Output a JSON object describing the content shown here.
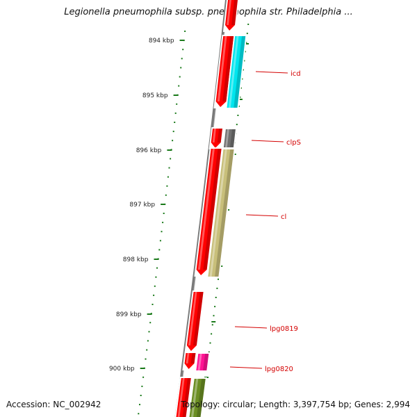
{
  "title": "Legionella pneumophila subsp. pneumophila str. Philadelphia ...",
  "footer": {
    "accession": "Accession: NC_002942",
    "summary": "Topology: circular; Length: 3,397,754 bp; Genes: 2,994"
  },
  "colors": {
    "backbone": "#7a7a7a",
    "tick": "#1a7a1a",
    "label_line": "#d40000",
    "label_text": "#d40000",
    "cds_strand": "#ff0000",
    "icd": "#00e5ee",
    "clpS": "#707070",
    "cl": "#c8bf7a",
    "lpg0820": "#ff1493",
    "next_gene": "#6b8e23"
  },
  "scale": {
    "labels": [
      "894 kbp",
      "895 kbp",
      "896 kbp",
      "897 kbp",
      "898 kbp",
      "899 kbp",
      "900 kbp"
    ]
  },
  "genes": [
    {
      "label": "icd"
    },
    {
      "label": "clpS"
    },
    {
      "label": "cl"
    },
    {
      "label": "lpg0819"
    },
    {
      "label": "lpg0820"
    }
  ]
}
